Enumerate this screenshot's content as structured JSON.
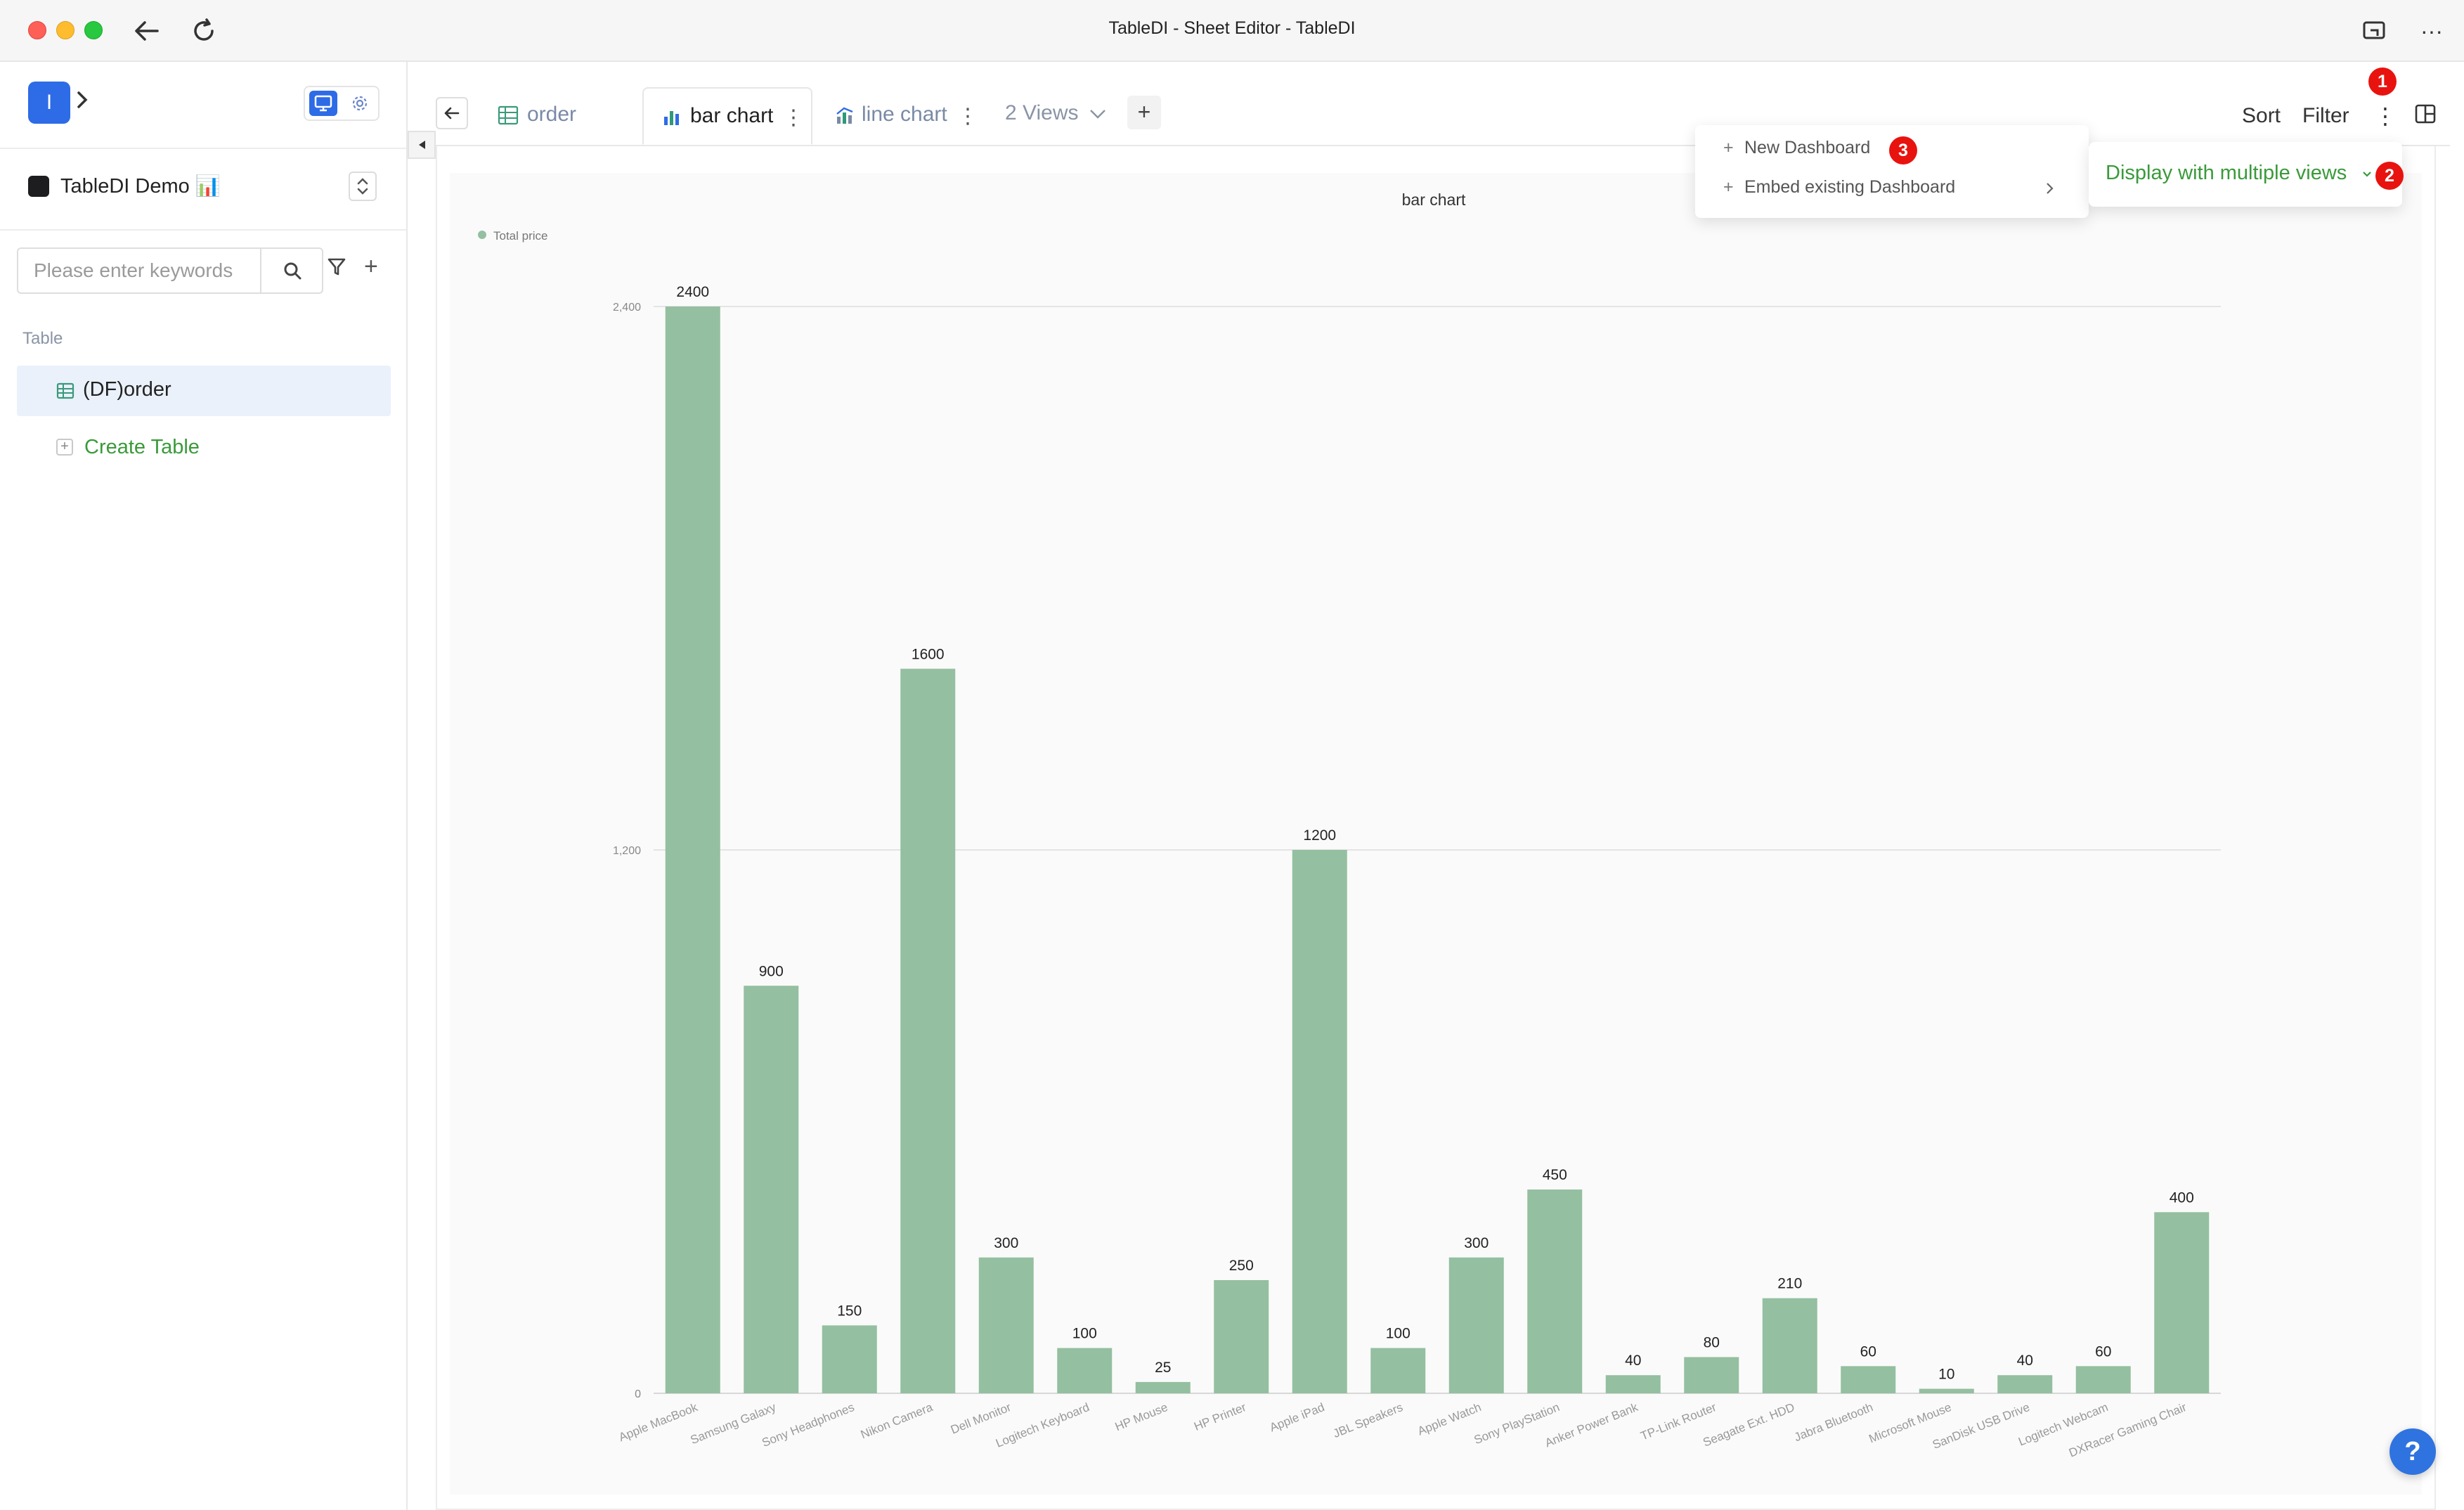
{
  "window": {
    "title": "TableDI - Sheet Editor - TableDI"
  },
  "sidebar": {
    "logo_letter": "I",
    "project_name": "TableDI Demo 📊",
    "search_placeholder": "Please enter keywords",
    "section_label": "Table",
    "tables": [
      {
        "label": "(DF)order"
      }
    ],
    "create_table_label": "Create Table"
  },
  "tabs": [
    {
      "label": "order"
    },
    {
      "label": "bar chart"
    },
    {
      "label": "line chart"
    }
  ],
  "views_selector": "2 Views",
  "toolbar": {
    "sort_label": "Sort",
    "filter_label": "Filter"
  },
  "menu": {
    "items": [
      {
        "label": "New Dashboard"
      },
      {
        "label": "Embed existing Dashboard"
      }
    ],
    "submenu_label": "Display with multiple views"
  },
  "badges": [
    "1",
    "2",
    "3"
  ],
  "help_label": "?",
  "colors": {
    "bar": "#94bfa0",
    "accent_green": "#3a9a3a",
    "brand_blue": "#2e6be6",
    "badge_red": "#e8130f"
  },
  "chart_data": {
    "type": "bar",
    "title": "bar chart",
    "legend": [
      "Total price"
    ],
    "legend_position": "top-left",
    "grid": true,
    "ylim": [
      0,
      2400
    ],
    "y_ticks": [
      "0",
      "1,200",
      "2,400"
    ],
    "categories": [
      "Apple MacBook",
      "Samsung Galaxy",
      "Sony Headphones",
      "Nikon Camera",
      "Dell Monitor",
      "Logitech Keyboard",
      "HP Mouse",
      "HP Printer",
      "Apple iPad",
      "JBL Speakers",
      "Apple Watch",
      "Sony PlayStation",
      "Anker Power Bank",
      "TP-Link Router",
      "Seagate Ext. HDD",
      "Jabra Bluetooth",
      "Microsoft Mouse",
      "SanDisk USB Drive",
      "Logitech Webcam",
      "DXRacer Gaming Chair"
    ],
    "series": [
      {
        "name": "Total price",
        "values": [
          2400,
          900,
          150,
          1600,
          300,
          100,
          25,
          250,
          1200,
          100,
          300,
          450,
          40,
          80,
          210,
          60,
          10,
          40,
          60,
          400
        ]
      }
    ]
  }
}
